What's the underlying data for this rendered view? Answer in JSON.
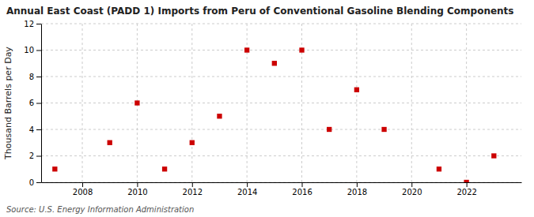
{
  "chart_data": {
    "type": "scatter",
    "title": "Annual East Coast (PADD 1) Imports from Peru of Conventional Gasoline Blending Components",
    "ylabel": "Thousand Barrels per Day",
    "source": "Source: U.S. Energy Information Administration",
    "x": [
      2007,
      2009,
      2010,
      2011,
      2012,
      2013,
      2014,
      2015,
      2016,
      2017,
      2018,
      2019,
      2021,
      2022,
      2023
    ],
    "values": [
      1,
      3,
      6,
      1,
      3,
      5,
      10,
      9,
      10,
      4,
      7,
      4,
      1,
      0,
      2
    ],
    "color": "#cc0000",
    "marker": "square",
    "xlim": [
      2006.5,
      2024
    ],
    "ylim": [
      0,
      12
    ],
    "xticks": [
      2008,
      2010,
      2012,
      2014,
      2016,
      2018,
      2020,
      2022
    ],
    "yticks": [
      0,
      2,
      4,
      6,
      8,
      10,
      12
    ],
    "grid": true
  }
}
